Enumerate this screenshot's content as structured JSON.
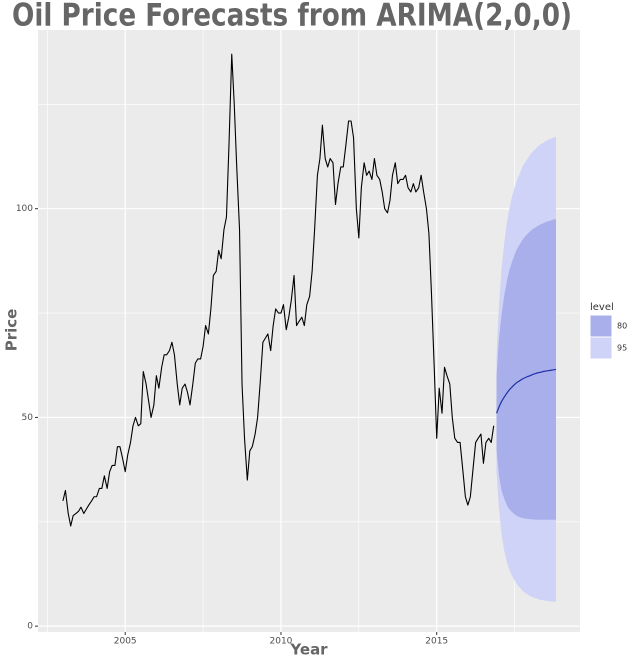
{
  "chart_data": {
    "type": "line",
    "title": "Oil Price Forecasts from ARIMA(2,0,0)",
    "x_label": "Year",
    "y_label": "Price",
    "xlim": [
      2002.2,
      2019.6
    ],
    "ylim": [
      -1.4,
      142.8
    ],
    "xticks": [
      2005,
      2010,
      2015
    ],
    "x_minor_ticks": [
      2002.5,
      2007.5,
      2012.5,
      2017.5
    ],
    "yticks": [
      0,
      50,
      100
    ],
    "y_minor_ticks": [
      25,
      75,
      125
    ],
    "grid": true,
    "series": [
      {
        "color": "#000000",
        "x": [
          2003.0,
          2003.08,
          2003.17,
          2003.25,
          2003.33,
          2003.42,
          2003.5,
          2003.58,
          2003.67,
          2003.75,
          2003.83,
          2003.92,
          2004.0,
          2004.08,
          2004.17,
          2004.25,
          2004.33,
          2004.42,
          2004.5,
          2004.58,
          2004.67,
          2004.75,
          2004.83,
          2004.92,
          2005.0,
          2005.08,
          2005.17,
          2005.25,
          2005.33,
          2005.42,
          2005.5,
          2005.58,
          2005.67,
          2005.75,
          2005.83,
          2005.92,
          2006.0,
          2006.08,
          2006.17,
          2006.25,
          2006.33,
          2006.42,
          2006.5,
          2006.58,
          2006.67,
          2006.75,
          2006.83,
          2006.92,
          2007.0,
          2007.08,
          2007.17,
          2007.25,
          2007.33,
          2007.42,
          2007.5,
          2007.58,
          2007.67,
          2007.75,
          2007.83,
          2007.92,
          2008.0,
          2008.08,
          2008.17,
          2008.25,
          2008.33,
          2008.42,
          2008.5,
          2008.58,
          2008.67,
          2008.75,
          2008.83,
          2008.92,
          2009.0,
          2009.08,
          2009.17,
          2009.25,
          2009.33,
          2009.42,
          2009.5,
          2009.58,
          2009.67,
          2009.75,
          2009.83,
          2009.92,
          2010.0,
          2010.08,
          2010.17,
          2010.25,
          2010.33,
          2010.42,
          2010.5,
          2010.58,
          2010.67,
          2010.75,
          2010.83,
          2010.92,
          2011.0,
          2011.08,
          2011.17,
          2011.25,
          2011.33,
          2011.42,
          2011.5,
          2011.58,
          2011.67,
          2011.75,
          2011.83,
          2011.92,
          2012.0,
          2012.08,
          2012.17,
          2012.25,
          2012.33,
          2012.42,
          2012.5,
          2012.58,
          2012.67,
          2012.75,
          2012.83,
          2012.92,
          2013.0,
          2013.08,
          2013.17,
          2013.25,
          2013.33,
          2013.42,
          2013.5,
          2013.58,
          2013.67,
          2013.75,
          2013.83,
          2013.92,
          2014.0,
          2014.08,
          2014.17,
          2014.25,
          2014.33,
          2014.42,
          2014.5,
          2014.58,
          2014.67,
          2014.75,
          2014.83,
          2014.92,
          2015.0,
          2015.08,
          2015.17,
          2015.25,
          2015.33,
          2015.42,
          2015.5,
          2015.58,
          2015.67,
          2015.75,
          2015.83,
          2015.92,
          2016.0,
          2016.08,
          2016.17,
          2016.25,
          2016.33,
          2016.42,
          2016.5,
          2016.58,
          2016.67,
          2016.75,
          2016.83
        ],
        "values": [
          30,
          32.5,
          27,
          24,
          26.5,
          27,
          27.5,
          28.5,
          27,
          28,
          29,
          30,
          31,
          31,
          33,
          33,
          36,
          33,
          37,
          38.5,
          38.5,
          43,
          43,
          40,
          37,
          41,
          44,
          48,
          50,
          48,
          48.5,
          61,
          58,
          54,
          50,
          53,
          60,
          57,
          62,
          65,
          65,
          66,
          68,
          65,
          58,
          53,
          57,
          58,
          56,
          53,
          58,
          63,
          64,
          64,
          67,
          72,
          70,
          76,
          84,
          85,
          90,
          88,
          95,
          98,
          115,
          137,
          125,
          110,
          95,
          58,
          45,
          35,
          42,
          43,
          46,
          50,
          58,
          68,
          69,
          70,
          66,
          72,
          76,
          75,
          75,
          77,
          71,
          74,
          78,
          84,
          72,
          73,
          74,
          72,
          77,
          79,
          85,
          95,
          108,
          112,
          120,
          112,
          110,
          112,
          111,
          101,
          106,
          110,
          110,
          115,
          121,
          121,
          117,
          100,
          93,
          105,
          111,
          108,
          109,
          107,
          112,
          108,
          107,
          104,
          100,
          99,
          102,
          108,
          111,
          106,
          107,
          107,
          108,
          105,
          104,
          106,
          104,
          105,
          108,
          104,
          100,
          94,
          80,
          62,
          45,
          57,
          51,
          62,
          60,
          58,
          50,
          45,
          44,
          44,
          38,
          31,
          29,
          31,
          38,
          44,
          45,
          46,
          39,
          44,
          45,
          44,
          48
        ]
      }
    ],
    "forecast": {
      "color": "#1f30a8",
      "x": [
        2016.92,
        2017.0,
        2017.08,
        2017.17,
        2017.25,
        2017.33,
        2017.42,
        2017.5,
        2017.58,
        2017.67,
        2017.75,
        2017.83,
        2017.92,
        2018.0,
        2018.08,
        2018.17,
        2018.25,
        2018.33,
        2018.42,
        2018.5,
        2018.58,
        2018.67,
        2018.75,
        2018.83
      ],
      "values": [
        51,
        52.5,
        53.8,
        54.9,
        55.8,
        56.6,
        57.3,
        57.9,
        58.4,
        58.8,
        59.2,
        59.5,
        59.8,
        60.0,
        60.3,
        60.5,
        60.7,
        60.8,
        61.0,
        61.1,
        61.2,
        61.3,
        61.4,
        61.5
      ]
    },
    "bands": [
      {
        "name": "80",
        "color": "#a9afea",
        "lower": [
          42,
          36,
          32.5,
          30.5,
          29,
          28,
          27.3,
          26.8,
          26.4,
          26.1,
          25.9,
          25.8,
          25.7,
          25.6,
          25.6,
          25.5,
          25.5,
          25.5,
          25.5,
          25.5,
          25.5,
          25.5,
          25.5,
          25.5
        ],
        "upper": [
          60,
          69,
          74.5,
          79.3,
          82.6,
          85.2,
          87.3,
          89,
          90.4,
          91.5,
          92.5,
          93.3,
          94,
          94.6,
          95.1,
          95.5,
          95.9,
          96.2,
          96.5,
          96.8,
          97,
          97.2,
          97.4,
          97.5
        ]
      },
      {
        "name": "95",
        "color": "#cfd3f7",
        "lower": [
          37,
          28,
          22,
          18,
          15.5,
          13.5,
          12,
          11,
          10,
          9.2,
          8.5,
          8,
          7.6,
          7.2,
          6.9,
          6.7,
          6.5,
          6.3,
          6.2,
          6.1,
          6,
          5.9,
          5.9,
          5.8
        ],
        "upper": [
          65,
          77,
          85.5,
          92,
          96.5,
          100,
          103,
          105,
          107,
          108.5,
          110,
          111,
          112,
          113,
          113.7,
          114.3,
          114.9,
          115.4,
          115.8,
          116.2,
          116.5,
          116.8,
          117,
          117.2
        ]
      }
    ],
    "legend": {
      "title": "level",
      "position": "right"
    }
  }
}
